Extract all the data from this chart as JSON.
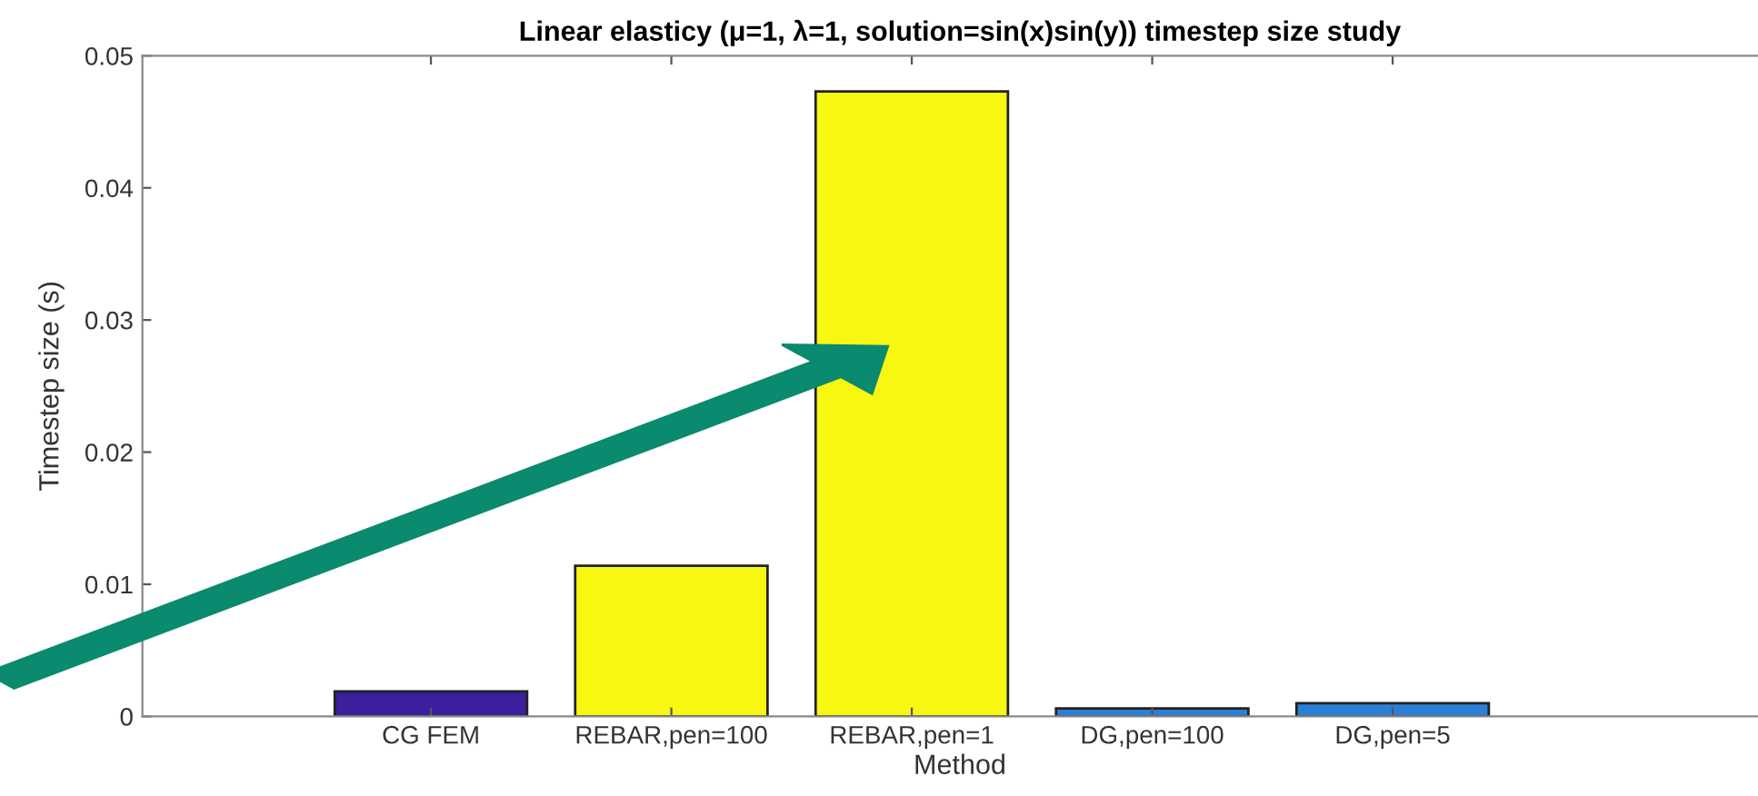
{
  "chart_data": {
    "type": "bar",
    "title": "Linear elasticy (μ=1, λ=1, solution=sin(x)sin(y)) timestep size study",
    "xlabel": "Method",
    "ylabel": "Timestep size (s)",
    "categories": [
      "CG FEM",
      "REBAR,pen=100",
      "REBAR,pen=1",
      "DG,pen=100",
      "DG,pen=5"
    ],
    "values": [
      0.0019,
      0.0114,
      0.0473,
      0.0006,
      0.001
    ],
    "colors": [
      "#3b1f9e",
      "#f7f711",
      "#f7f711",
      "#2a7fd6",
      "#2a7fd6"
    ],
    "ylim": [
      0,
      0.05
    ],
    "yticks": [
      0,
      0.01,
      0.02,
      0.03,
      0.04,
      0.05
    ],
    "grid": false,
    "legend": false
  }
}
